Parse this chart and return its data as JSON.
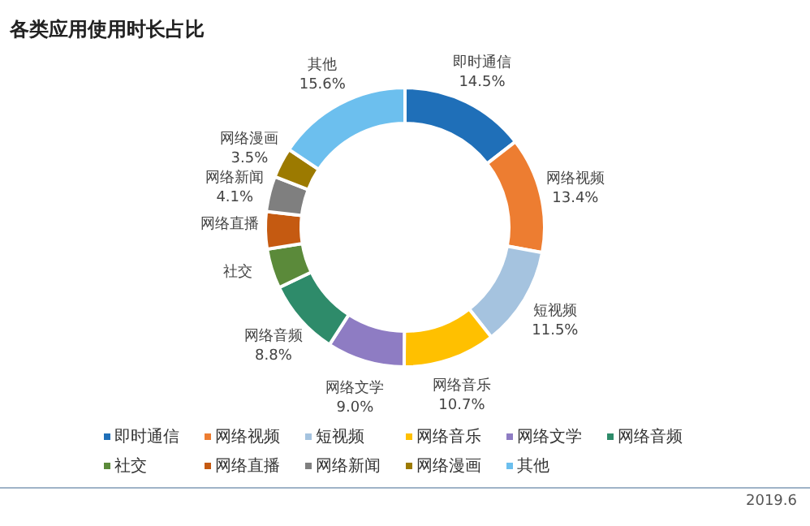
{
  "chart_data": {
    "type": "donut",
    "title": "各类应用使用时长占比",
    "categories": [
      "即时通信",
      "网络视频",
      "短视频",
      "网络音乐",
      "网络文学",
      "网络音频",
      "社交",
      "网络直播",
      "网络新闻",
      "网络漫画",
      "其他"
    ],
    "values": [
      14.5,
      13.4,
      11.5,
      10.7,
      9.0,
      8.8,
      4.6,
      4.3,
      4.1,
      3.5,
      15.6
    ],
    "value_labels": [
      "14.5%",
      "13.4%",
      "11.5%",
      "10.7%",
      "9.0%",
      "8.8%",
      null,
      null,
      "4.1%",
      "3.5%",
      "15.6%"
    ],
    "colors": [
      "#1f6fb8",
      "#ed7d31",
      "#a5c3df",
      "#ffc000",
      "#8e7cc3",
      "#2e8b6a",
      "#5b8a3a",
      "#c55a11",
      "#7f7f7f",
      "#9c7a00",
      "#6cbfee"
    ],
    "legend": "bottom",
    "annotations": [
      "2019.6"
    ]
  }
}
